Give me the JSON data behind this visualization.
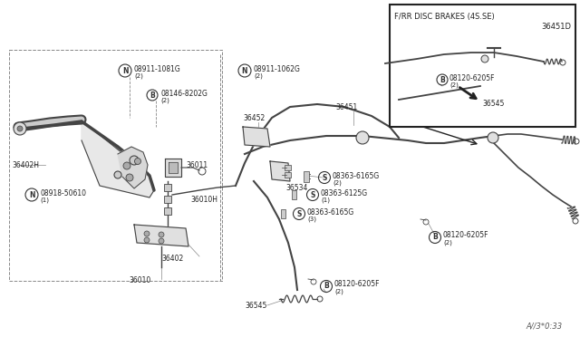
{
  "bg_color": "#ffffff",
  "line_color": "#444444",
  "dark_color": "#222222",
  "inset_label": "F/RR DISC BRAKES (4S.SE)",
  "inset_part": "36451D",
  "watermark": "A//3*0:33"
}
